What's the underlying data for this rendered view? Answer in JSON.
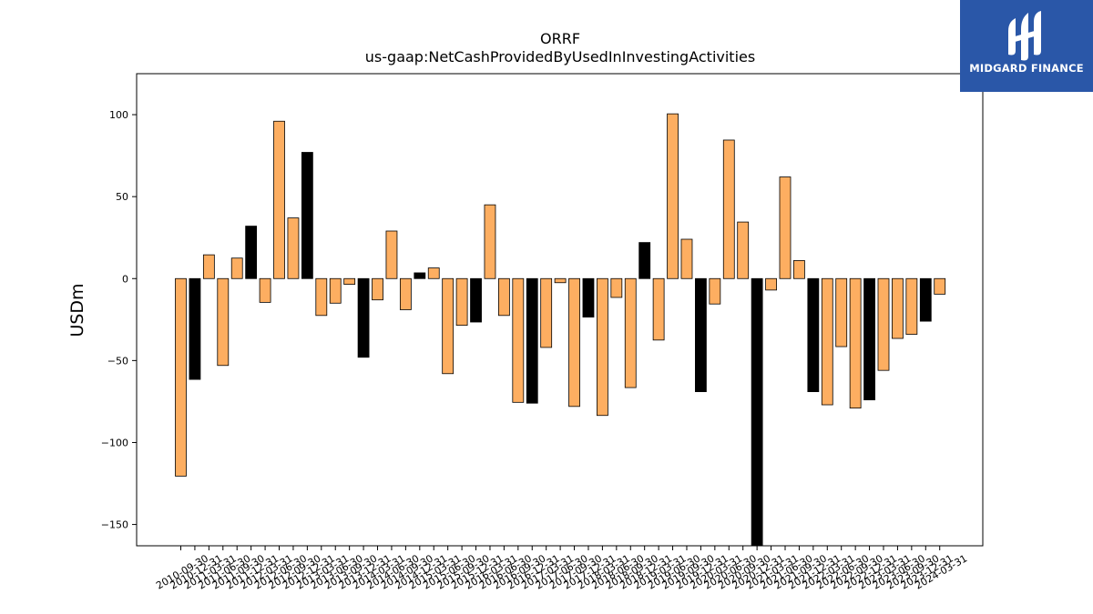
{
  "colors": {
    "accent": "#fdae61",
    "highlight": "#000000",
    "bar_edge": "#000000",
    "logo_bg": "#2a57a8"
  },
  "logo": {
    "text": "MIDGARD FINANCE",
    "icon": "midgard-logo-icon"
  },
  "chart_data": {
    "type": "bar",
    "title": "ORRF",
    "subtitle": "us-gaap:NetCashProvidedByUsedInInvestingActivities",
    "xlabel": "",
    "ylabel": "USDm",
    "ylim": [
      -163,
      125
    ],
    "yticks": [
      100,
      50,
      0,
      -50,
      -100,
      -150
    ],
    "grid": false,
    "categories": [
      "2010-09-30",
      "2010-12-31",
      "2011-03-31",
      "2011-06-30",
      "2011-09-30",
      "2011-12-31",
      "2012-03-31",
      "2012-06-30",
      "2012-09-30",
      "2012-12-31",
      "2013-03-31",
      "2013-06-30",
      "2013-09-30",
      "2013-12-31",
      "2014-03-31",
      "2014-06-30",
      "2014-09-30",
      "2014-12-31",
      "2015-03-31",
      "2015-06-30",
      "2015-09-30",
      "2015-12-31",
      "2016-03-31",
      "2016-06-30",
      "2016-09-30",
      "2016-12-31",
      "2017-03-31",
      "2017-06-30",
      "2017-09-30",
      "2017-12-31",
      "2018-03-31",
      "2018-06-30",
      "2018-09-30",
      "2018-12-31",
      "2019-03-31",
      "2019-06-30",
      "2019-09-30",
      "2019-12-31",
      "2020-03-31",
      "2020-06-30",
      "2020-09-30",
      "2020-12-31",
      "2021-03-31",
      "2021-06-30",
      "2021-09-30",
      "2021-12-31",
      "2022-03-31",
      "2022-06-30",
      "2022-09-30",
      "2022-12-31",
      "2023-03-31",
      "2023-06-30",
      "2023-09-30",
      "2023-12-31",
      "2024-03-31"
    ],
    "values": [
      -120.5,
      -61.5,
      14.5,
      -53,
      12.5,
      32,
      -14.5,
      96,
      37,
      77,
      -22.5,
      -15,
      -3.5,
      -48,
      -13,
      29,
      -19,
      3.5,
      6.5,
      -58,
      -28.5,
      -26.5,
      45,
      -22.5,
      -75.5,
      -76,
      -42,
      -2.5,
      -78,
      -23.5,
      -83.5,
      -11.5,
      -66.5,
      22,
      -37.5,
      100.5,
      24,
      -69,
      -15.5,
      84.5,
      34.5,
      -165,
      -7,
      62,
      11,
      -69,
      -77,
      -41.5,
      -79,
      -74,
      -56,
      -36.5,
      -34,
      -26,
      -9.5
    ],
    "highlight": [
      false,
      true,
      false,
      false,
      false,
      true,
      false,
      false,
      false,
      true,
      false,
      false,
      false,
      true,
      false,
      false,
      false,
      true,
      false,
      false,
      false,
      true,
      false,
      false,
      false,
      true,
      false,
      false,
      false,
      true,
      false,
      false,
      false,
      true,
      false,
      false,
      false,
      true,
      false,
      false,
      false,
      true,
      false,
      false,
      false,
      true,
      false,
      false,
      false,
      true,
      false,
      false,
      false,
      true,
      false
    ]
  }
}
